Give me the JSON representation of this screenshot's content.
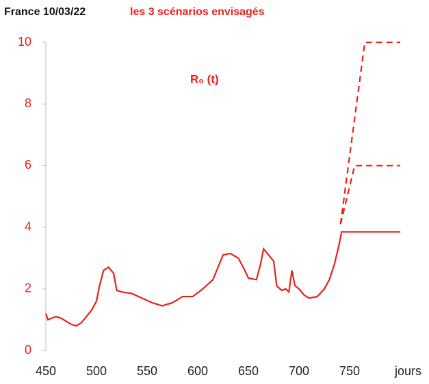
{
  "chart_data": {
    "type": "line",
    "title": "France  10/03/22",
    "subtitle": "les 3 scénarios envisagés",
    "annotation": "R₀ (t)",
    "xlabel": "jours",
    "xlim": [
      450,
      800
    ],
    "xticks": [
      450,
      500,
      550,
      600,
      650,
      700,
      750
    ],
    "ylim": [
      0,
      10
    ],
    "yticks": [
      0,
      2,
      4,
      6,
      8,
      10
    ],
    "series": [
      {
        "color": "#e8201a",
        "dash": false,
        "x": [
          450,
          452,
          460,
          465,
          470,
          475,
          480,
          485,
          490,
          495,
          500,
          503,
          507,
          512,
          517,
          520,
          525,
          535,
          545,
          555,
          565,
          575,
          585,
          595,
          605,
          615,
          620,
          625,
          632,
          640,
          645,
          650,
          658,
          662,
          665,
          670,
          675,
          678,
          683,
          687,
          690,
          693,
          696,
          700,
          705,
          710,
          718,
          725,
          730,
          735,
          740,
          742,
          800
        ],
        "values": [
          1.2,
          1.0,
          1.1,
          1.05,
          0.95,
          0.85,
          0.8,
          0.9,
          1.1,
          1.3,
          1.6,
          2.1,
          2.6,
          2.7,
          2.5,
          1.95,
          1.9,
          1.85,
          1.7,
          1.55,
          1.45,
          1.55,
          1.75,
          1.75,
          2.0,
          2.3,
          2.7,
          3.1,
          3.15,
          3.0,
          2.7,
          2.35,
          2.3,
          2.8,
          3.3,
          3.1,
          2.9,
          2.1,
          1.95,
          2.0,
          1.9,
          2.6,
          2.1,
          2.0,
          1.8,
          1.7,
          1.75,
          2.0,
          2.3,
          2.8,
          3.5,
          3.85,
          3.85
        ]
      },
      {
        "color": "#e8201a",
        "dash": true,
        "x": [
          741,
          755,
          800
        ],
        "values": [
          4.1,
          6,
          6
        ]
      },
      {
        "color": "#e8201a",
        "dash": true,
        "x": [
          741,
          765,
          800
        ],
        "values": [
          4.1,
          10,
          10
        ]
      }
    ]
  }
}
